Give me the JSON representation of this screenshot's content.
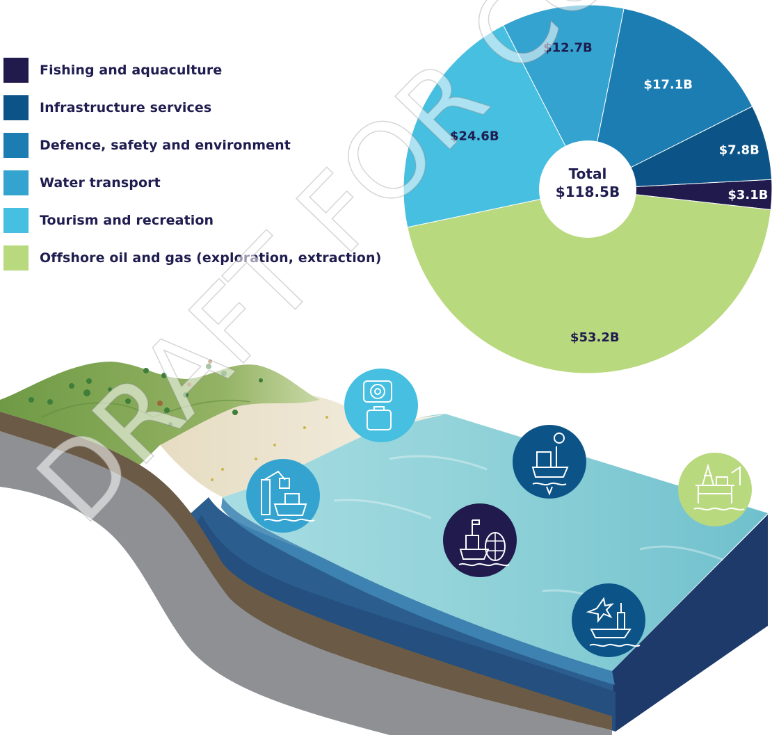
{
  "chart_data": {
    "type": "pie",
    "center_label": {
      "line1": "Total",
      "line2": "$118.5B"
    },
    "total": 118.5,
    "unit": "$B",
    "slices": [
      {
        "name": "Fishing and aquaculture",
        "value": 3.1,
        "label": "$3.1B",
        "color": "#201a4d",
        "label_color": "#ffffff"
      },
      {
        "name": "Offshore oil and gas (exploration, extraction)",
        "value": 53.2,
        "label": "$53.2B",
        "color": "#b9d97e",
        "label_color": "#1f1c4f"
      },
      {
        "name": "Tourism and recreation",
        "value": 24.6,
        "label": "$24.6B",
        "color": "#47bfe0",
        "label_color": "#1f1c4f"
      },
      {
        "name": "Water transport",
        "value": 12.7,
        "label": "$12.7B",
        "color": "#34a3cf",
        "label_color": "#1f1c4f"
      },
      {
        "name": "Defence, safety and environment",
        "value": 17.1,
        "label": "$17.1B",
        "color": "#1c7db2",
        "label_color": "#ffffff"
      },
      {
        "name": "Infrastructure services",
        "value": 7.8,
        "label": "$7.8B",
        "color": "#0c5488",
        "label_color": "#ffffff"
      }
    ],
    "legend_placement": "left"
  },
  "legend": [
    {
      "label": "Fishing and aquaculture",
      "color": "#201a4d"
    },
    {
      "label": "Infrastructure services",
      "color": "#0c5488"
    },
    {
      "label": "Defence, safety and environment",
      "color": "#1c7db2"
    },
    {
      "label": "Water transport",
      "color": "#34a3cf"
    },
    {
      "label": "Tourism and recreation",
      "color": "#47bfe0"
    },
    {
      "label": "Offshore oil and gas (exploration, extraction)",
      "color": "#b9d97e"
    }
  ],
  "watermark": "DRAFT FOR CONSULTATION",
  "illustration": {
    "icons": [
      {
        "name": "tourism-icon",
        "color": "#47bfe0"
      },
      {
        "name": "water-transport-icon",
        "color": "#34a3cf"
      },
      {
        "name": "infrastructure-icon",
        "color": "#0c5488"
      },
      {
        "name": "fishing-icon",
        "color": "#201a4d"
      },
      {
        "name": "defence-icon",
        "color": "#0c5488"
      },
      {
        "name": "offshore-oil-gas-icon",
        "color": "#b9d97e"
      }
    ]
  }
}
